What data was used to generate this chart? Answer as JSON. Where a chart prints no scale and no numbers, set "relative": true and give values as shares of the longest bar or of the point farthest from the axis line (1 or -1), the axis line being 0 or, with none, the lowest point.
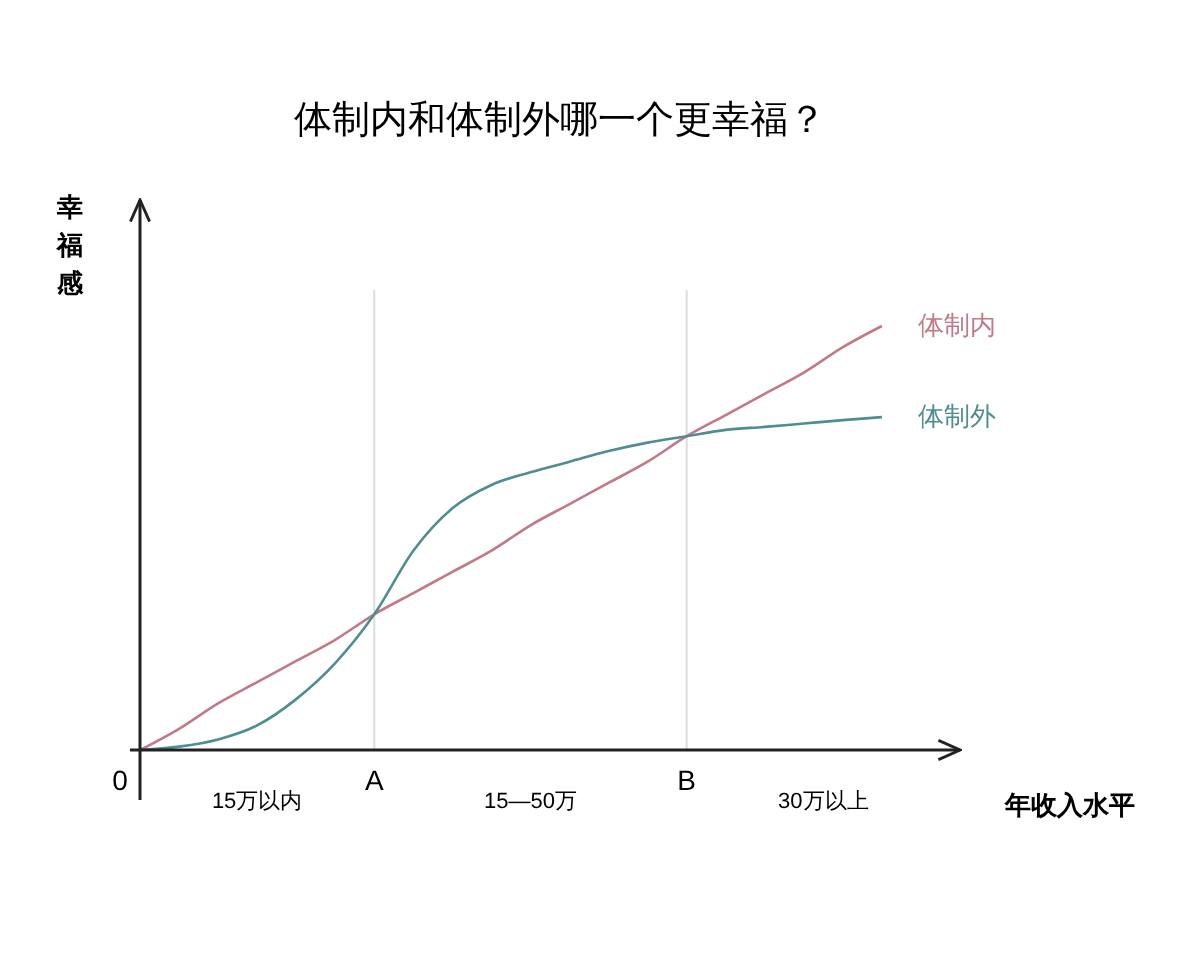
{
  "chart_data": {
    "type": "line",
    "title": "体制内和体制外哪一个更幸福？",
    "xlabel": "年收入水平",
    "ylabel": "幸福感",
    "relative": true,
    "categories": [
      "0",
      null,
      null,
      null,
      null,
      null,
      "A",
      null,
      null,
      null,
      null,
      null,
      null,
      null,
      "B",
      null,
      null,
      null,
      null,
      null,
      null,
      null
    ],
    "series": [
      {
        "name": "体制内",
        "color": "#c07a88",
        "values": [
          0,
          0.05,
          0.11,
          0.16,
          0.21,
          0.26,
          0.32,
          0.37,
          0.42,
          0.47,
          0.53,
          0.58,
          0.63,
          0.68,
          0.74,
          0.79,
          0.84,
          0.89,
          0.95,
          1,
          null,
          null
        ]
      },
      {
        "name": "体制外",
        "color": "#4f8d8f",
        "values": [
          0,
          0.008,
          0.025,
          0.058,
          0.12,
          0.205,
          0.32,
          0.47,
          0.57,
          0.625,
          0.655,
          0.68,
          0.705,
          0.725,
          0.74,
          0.755,
          0.762,
          0.77,
          0.778,
          0.785,
          null,
          null
        ]
      }
    ],
    "ref_lines": [
      {
        "axis": "x",
        "value": "A",
        "color": "#dddddd"
      },
      {
        "axis": "x",
        "value": "B",
        "color": "#dddddd"
      }
    ],
    "annotations": [
      "15万以内",
      "15—50万",
      "30万以上"
    ]
  }
}
